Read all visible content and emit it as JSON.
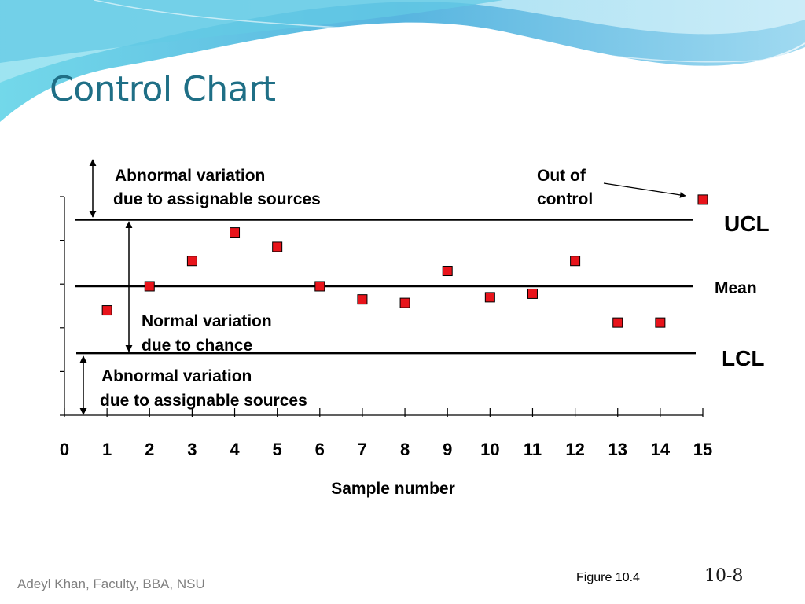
{
  "slide": {
    "title": "Control Chart",
    "footer_left": "Adeyl Khan, Faculty, BBA, NSU",
    "figure_label": "Figure 10.4",
    "page_number": "10-8"
  },
  "chart_data": {
    "type": "scatter",
    "title": "",
    "xlabel": "Sample number",
    "ylabel": "",
    "x_ticks": [
      0,
      1,
      2,
      3,
      4,
      5,
      6,
      7,
      8,
      9,
      10,
      11,
      12,
      13,
      14,
      15
    ],
    "xlim": [
      0,
      15
    ],
    "ylim": [
      0,
      5
    ],
    "lines": [
      {
        "name": "UCL",
        "y": 4.47
      },
      {
        "name": "Mean",
        "y": 2.95
      },
      {
        "name": "LCL",
        "y": 1.42
      }
    ],
    "series": [
      {
        "marker": "square",
        "color": "#e8141b",
        "x": [
          1,
          2,
          3,
          4,
          5,
          6,
          7,
          8,
          9,
          10,
          11,
          12,
          13,
          14,
          15
        ],
        "y": [
          2.4,
          2.95,
          3.53,
          4.18,
          3.85,
          2.95,
          2.65,
          2.57,
          3.3,
          2.7,
          2.78,
          3.53,
          2.12,
          2.12,
          4.93
        ]
      }
    ],
    "annotations": {
      "abnormal_top_line1": "Abnormal variation",
      "abnormal_top_line2": "due to assignable sources",
      "normal_line1": "Normal variation",
      "normal_line2": "due to chance",
      "abnormal_bottom_line1": "Abnormal variation",
      "abnormal_bottom_line2": "due to assignable sources",
      "out_line1": "Out of",
      "out_line2": "control"
    },
    "grid": false
  }
}
